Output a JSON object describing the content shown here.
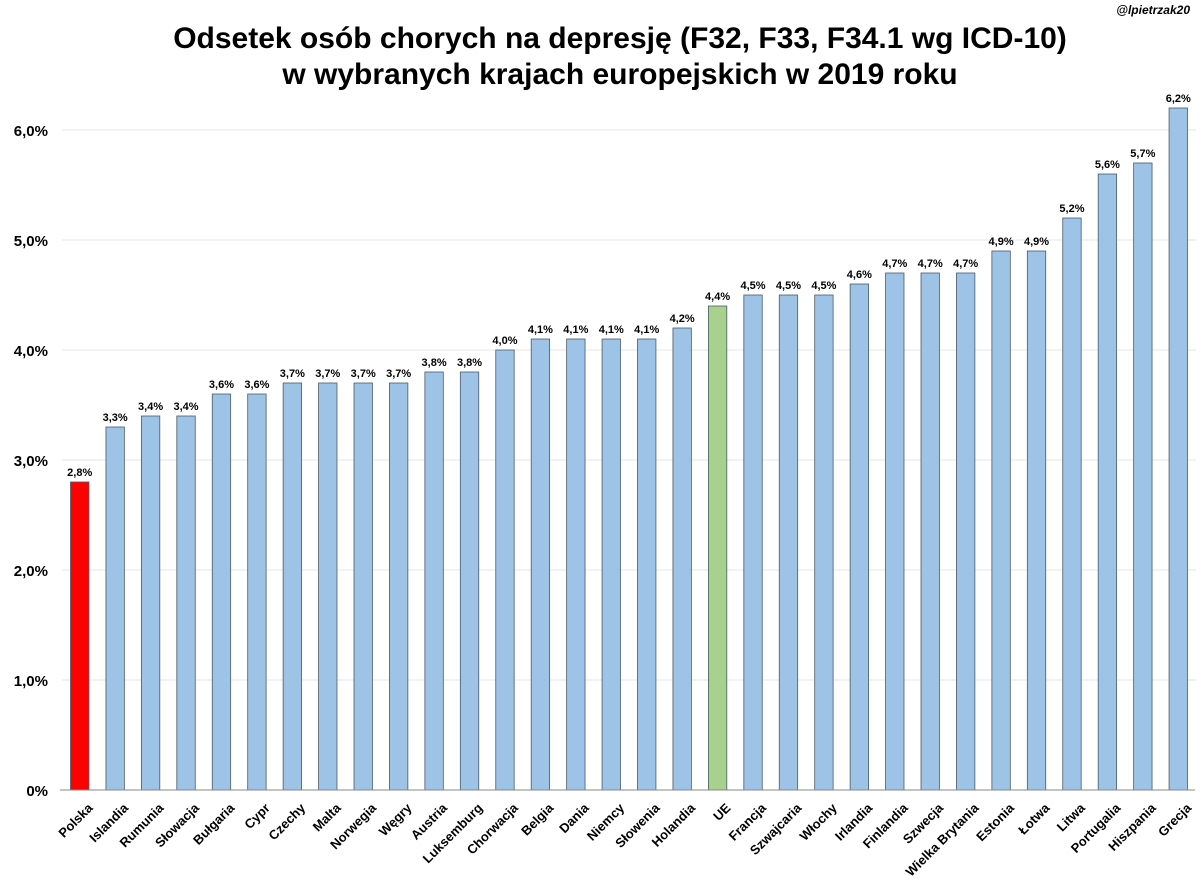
{
  "watermark": "@lpietrzak20",
  "chart_data": {
    "type": "bar",
    "title_lines": [
      "Odsetek osób chorych na depresję (F32, F33, F34.1 wg ICD-10)",
      "w wybranych krajach europejskich w 2019 roku"
    ],
    "xlabel": "",
    "ylabel": "",
    "ylim": [
      0,
      6.2
    ],
    "yticks": [
      0,
      1,
      2,
      3,
      4,
      5,
      6
    ],
    "ytick_labels": [
      "0%",
      "1,0%",
      "2,0%",
      "3,0%",
      "4,0%",
      "5,0%",
      "6,0%"
    ],
    "grid": true,
    "categories": [
      "Polska",
      "Islandia",
      "Rumunia",
      "Słowacja",
      "Bułgaria",
      "Cypr",
      "Czechy",
      "Malta",
      "Norwegia",
      "Węgry",
      "Austria",
      "Luksemburg",
      "Chorwacja",
      "Belgia",
      "Dania",
      "Niemcy",
      "Słowenia",
      "Holandia",
      "UE",
      "Francja",
      "Szwajcaria",
      "Włochy",
      "Irlandia",
      "Finlandia",
      "Szwecja",
      "Wielka Brytania",
      "Estonia",
      "Łotwa",
      "Litwa",
      "Portugalia",
      "Hiszpania",
      "Grecja"
    ],
    "values": [
      2.8,
      3.3,
      3.4,
      3.4,
      3.6,
      3.6,
      3.7,
      3.7,
      3.7,
      3.7,
      3.8,
      3.8,
      4.0,
      4.1,
      4.1,
      4.1,
      4.1,
      4.2,
      4.4,
      4.5,
      4.5,
      4.5,
      4.6,
      4.7,
      4.7,
      4.7,
      4.9,
      4.9,
      5.2,
      5.6,
      5.7,
      6.2
    ],
    "value_labels": [
      "2,8%",
      "3,3%",
      "3,4%",
      "3,4%",
      "3,6%",
      "3,6%",
      "3,7%",
      "3,7%",
      "3,7%",
      "3,7%",
      "3,8%",
      "3,8%",
      "4,0%",
      "4,1%",
      "4,1%",
      "4,1%",
      "4,1%",
      "4,2%",
      "4,4%",
      "4,5%",
      "4,5%",
      "4,5%",
      "4,6%",
      "4,7%",
      "4,7%",
      "4,7%",
      "4,9%",
      "4,9%",
      "5,2%",
      "5,6%",
      "5,7%",
      "6,2%"
    ],
    "colors": {
      "default": "#9dc3e6",
      "highlight": {
        "Polska": "#ff0000",
        "UE": "#a9d18e"
      }
    }
  }
}
